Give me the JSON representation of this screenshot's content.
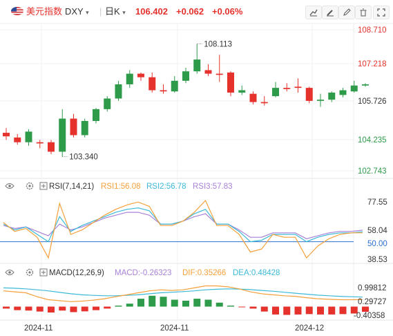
{
  "header": {
    "name": "美元指数",
    "code": "DXY",
    "period": "日K",
    "price": "106.402",
    "change": "+0.062",
    "change_pct": "+0.06%",
    "price_color": "#e5322d",
    "icons": [
      "draw-line-icon",
      "brush-icon",
      "pencil-icon",
      "delete-icon",
      "fullscreen-icon"
    ]
  },
  "main": {
    "price_ticks": [
      "108.710",
      "107.218",
      "105.726",
      "104.235",
      "102.743"
    ],
    "high_label": "108.113",
    "low_label": "103.340",
    "up_color": "#2e9b4a",
    "down_color": "#e5322d",
    "candles": [
      {
        "o": 104.35,
        "c": 104.2,
        "h": 104.55,
        "l": 104.05
      },
      {
        "o": 104.15,
        "c": 103.95,
        "h": 104.3,
        "l": 103.85
      },
      {
        "o": 103.95,
        "c": 104.4,
        "h": 104.5,
        "l": 103.8
      },
      {
        "o": 103.95,
        "c": 103.9,
        "h": 104.05,
        "l": 103.7
      },
      {
        "o": 103.95,
        "c": 103.55,
        "h": 104.05,
        "l": 103.45
      },
      {
        "o": 103.55,
        "c": 104.95,
        "h": 105.35,
        "l": 103.34
      },
      {
        "o": 104.95,
        "c": 104.25,
        "h": 105.15,
        "l": 104.15
      },
      {
        "o": 104.25,
        "c": 104.85,
        "h": 104.95,
        "l": 104.15
      },
      {
        "o": 104.85,
        "c": 105.35,
        "h": 105.4,
        "l": 104.75
      },
      {
        "o": 105.35,
        "c": 105.8,
        "h": 105.9,
        "l": 105.25
      },
      {
        "o": 105.8,
        "c": 106.4,
        "h": 106.55,
        "l": 105.7
      },
      {
        "o": 106.4,
        "c": 106.85,
        "h": 107.0,
        "l": 106.25
      },
      {
        "o": 106.85,
        "c": 106.7,
        "h": 106.9,
        "l": 106.55
      },
      {
        "o": 106.7,
        "c": 106.15,
        "h": 106.9,
        "l": 106.05
      },
      {
        "o": 106.15,
        "c": 106.1,
        "h": 106.4,
        "l": 106.0
      },
      {
        "o": 106.1,
        "c": 106.55,
        "h": 106.75,
        "l": 106.05
      },
      {
        "o": 106.55,
        "c": 106.95,
        "h": 107.1,
        "l": 106.45
      },
      {
        "o": 106.95,
        "c": 107.45,
        "h": 108.113,
        "l": 106.85
      },
      {
        "o": 107.0,
        "c": 106.85,
        "h": 107.25,
        "l": 106.75
      },
      {
        "o": 106.85,
        "c": 106.8,
        "h": 107.65,
        "l": 106.5
      },
      {
        "o": 106.9,
        "c": 106.05,
        "h": 106.95,
        "l": 105.9
      },
      {
        "o": 106.05,
        "c": 106.15,
        "h": 106.35,
        "l": 105.95
      },
      {
        "o": 106.0,
        "c": 105.65,
        "h": 106.1,
        "l": 105.55
      },
      {
        "o": 105.65,
        "c": 105.6,
        "h": 105.9,
        "l": 105.5
      },
      {
        "o": 105.9,
        "c": 106.25,
        "h": 106.5,
        "l": 105.85
      },
      {
        "o": 106.25,
        "c": 106.2,
        "h": 106.45,
        "l": 106.1
      },
      {
        "o": 106.3,
        "c": 106.25,
        "h": 106.65,
        "l": 106.05
      },
      {
        "o": 106.25,
        "c": 105.7,
        "h": 106.3,
        "l": 105.6
      },
      {
        "o": 105.7,
        "c": 105.75,
        "h": 106.0,
        "l": 105.45
      },
      {
        "o": 105.75,
        "c": 106.05,
        "h": 106.1,
        "l": 105.65
      },
      {
        "o": 105.95,
        "c": 106.15,
        "h": 106.25,
        "l": 105.85
      },
      {
        "o": 106.1,
        "c": 106.35,
        "h": 106.55,
        "l": 106.05
      },
      {
        "o": 106.35,
        "c": 106.4,
        "h": 106.45,
        "l": 106.3
      }
    ]
  },
  "rsi": {
    "title": "RSI(7,14,21)",
    "rsi1_label": "RSI1:56.08",
    "rsi2_label": "RSI2:56.78",
    "rsi3_label": "RSI3:57.83",
    "ticks": [
      "77.55",
      "58.04",
      "50.00",
      "38.53"
    ],
    "colors": {
      "rsi1": "#f5a03a",
      "rsi2": "#3cb9d6",
      "rsi3": "#a781d8",
      "mid": "#2d6fd1"
    },
    "rsi1": [
      63,
      57,
      59,
      53,
      39,
      76,
      55,
      58,
      63,
      68,
      72,
      75,
      77,
      74,
      61,
      61,
      64,
      70,
      78,
      61,
      61,
      55,
      43,
      45,
      55,
      53,
      53,
      39,
      47,
      52,
      55,
      56,
      56.08
    ],
    "rsi2": [
      62,
      58,
      60,
      55,
      50,
      67,
      57,
      61,
      64,
      67,
      70,
      72,
      73,
      71,
      62,
      62,
      64,
      69,
      72,
      62,
      62,
      57,
      50,
      51,
      55,
      55,
      55,
      50,
      53,
      55,
      56,
      56,
      56.78
    ],
    "rsi3": [
      61,
      59,
      60,
      57,
      54,
      62,
      58,
      60,
      63,
      66,
      68,
      70,
      70,
      68,
      62,
      62,
      64,
      67,
      69,
      62,
      62,
      58,
      53,
      53,
      56,
      56,
      56,
      52,
      54,
      56,
      57,
      57,
      57.83
    ]
  },
  "macd": {
    "title": "MACD(12,26,9)",
    "macd_label": "MACD:-0.26323",
    "dif_label": "DIF:0.35266",
    "dea_label": "DEA:0.48428",
    "ticks": [
      "0.99812",
      "0.29727",
      "-0.40358"
    ],
    "colors": {
      "dif": "#f5a03a",
      "dea": "#3cb9d6",
      "hist_up": "#2e9b4a",
      "hist_down": "#e5322d"
    },
    "dif": [
      0.8,
      0.75,
      0.7,
      0.5,
      0.35,
      0.3,
      0.25,
      0.28,
      0.33,
      0.4,
      0.5,
      0.6,
      0.7,
      0.8,
      0.85,
      0.82,
      0.85,
      0.95,
      1.05,
      1.05,
      1.0,
      0.9,
      0.75,
      0.65,
      0.6,
      0.55,
      0.52,
      0.45,
      0.4,
      0.37,
      0.35,
      0.35,
      0.35266
    ],
    "dea": [
      0.95,
      0.93,
      0.9,
      0.85,
      0.8,
      0.72,
      0.65,
      0.6,
      0.57,
      0.55,
      0.55,
      0.57,
      0.6,
      0.65,
      0.7,
      0.73,
      0.76,
      0.8,
      0.85,
      0.88,
      0.9,
      0.89,
      0.86,
      0.82,
      0.78,
      0.73,
      0.68,
      0.63,
      0.58,
      0.55,
      0.52,
      0.5,
      0.48428
    ],
    "hist": [
      -0.1,
      -0.18,
      -0.2,
      -0.25,
      -0.3,
      -0.2,
      -0.28,
      -0.24,
      -0.18,
      -0.1,
      0.05,
      0.15,
      0.4,
      0.55,
      0.5,
      0.35,
      0.3,
      0.4,
      0.35,
      0.2,
      0.05,
      -0.02,
      -0.1,
      -0.25,
      -0.4,
      -0.42,
      -0.4,
      -0.38,
      -0.4,
      -0.4,
      -0.38,
      -0.35,
      -0.26323
    ]
  },
  "x_axis": {
    "labels": [
      "2024-11",
      "2024-11",
      "2024-12"
    ]
  }
}
